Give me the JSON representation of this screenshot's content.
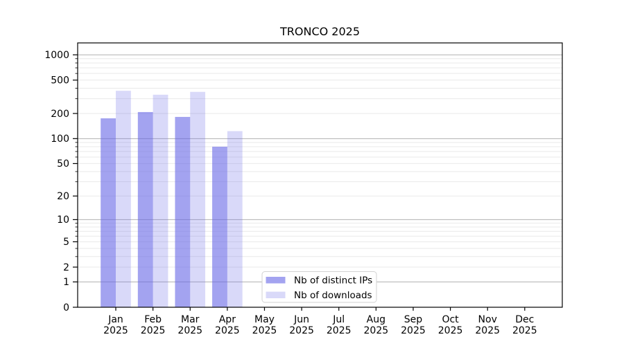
{
  "title": "TRONCO 2025",
  "colors": {
    "bar_base": "#6666e6",
    "ips_fill": "rgba(102,102,230,0.6)",
    "downloads_fill": "rgba(102,102,230,0.25)",
    "major_gridline": "#b0b0b0",
    "minor_gridline": "#e9e9e9",
    "axis_line": "#000000",
    "legend_border": "#d2d2d2",
    "legend_background": "#ffffff",
    "text": "#000000"
  },
  "chart_data": {
    "type": "bar",
    "title": "TRONCO 2025",
    "categories": [
      "Jan 2025",
      "Feb 2025",
      "Mar 2025",
      "Apr 2025",
      "May 2025",
      "Jun 2025",
      "Jul 2025",
      "Aug 2025",
      "Sep 2025",
      "Oct 2025",
      "Nov 2025",
      "Dec 2025"
    ],
    "series": [
      {
        "name": "Nb of distinct IPs",
        "values": [
          175,
          208,
          182,
          80,
          0,
          0,
          0,
          0,
          0,
          0,
          0,
          0
        ]
      },
      {
        "name": "Nb of downloads",
        "values": [
          373,
          335,
          362,
          123,
          0,
          0,
          0,
          0,
          0,
          0,
          0,
          0
        ]
      }
    ],
    "xlabel": "",
    "ylabel": "",
    "yscale": "symlog",
    "ylim": [
      0,
      1400
    ],
    "ytick_labels": [
      0,
      1,
      2,
      5,
      10,
      20,
      50,
      100,
      200,
      500,
      1000
    ],
    "y_minor_gridlines": [
      2,
      3,
      4,
      5,
      6,
      7,
      8,
      9,
      20,
      30,
      40,
      50,
      60,
      70,
      80,
      90,
      200,
      300,
      400,
      500,
      600,
      700,
      800,
      900
    ],
    "y_major_gridlines": [
      1,
      10,
      100,
      1000
    ],
    "grid": "horizontal",
    "legend_position": "lower center"
  }
}
